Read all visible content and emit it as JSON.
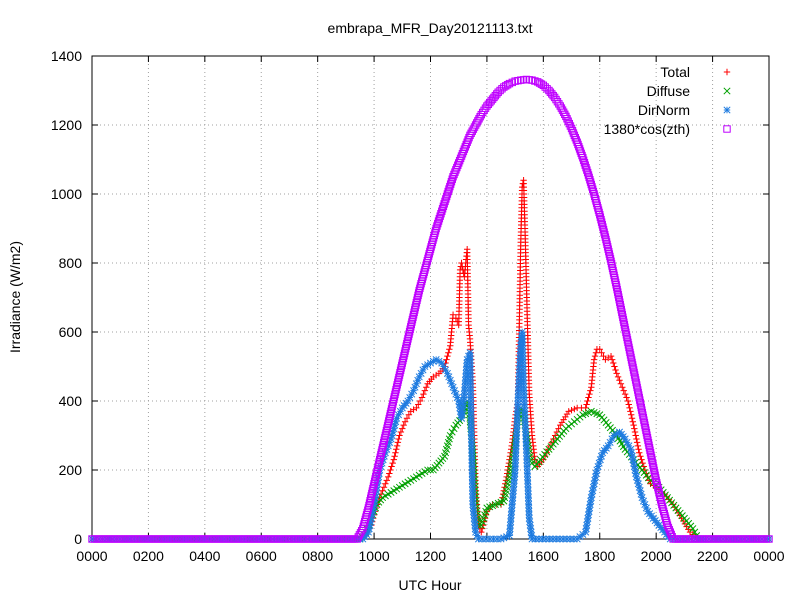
{
  "chart_data": {
    "type": "scatter",
    "title": "embrapa_MFR_Day20121113.txt",
    "xlabel": "UTC Hour",
    "ylabel": "Irradiance (W/m2)",
    "xlim": [
      0,
      24
    ],
    "ylim": [
      0,
      1400
    ],
    "x_ticks": [
      0,
      2,
      4,
      6,
      8,
      10,
      12,
      14,
      16,
      18,
      20,
      22,
      24
    ],
    "x_tick_labels": [
      "0000",
      "0200",
      "0400",
      "0600",
      "0800",
      "1000",
      "1200",
      "1400",
      "1600",
      "1800",
      "2000",
      "2200",
      "0000"
    ],
    "y_ticks": [
      0,
      200,
      400,
      600,
      800,
      1000,
      1200,
      1400
    ],
    "y_tick_labels": [
      "0",
      "200",
      "400",
      "600",
      "800",
      "1000",
      "1200",
      "1400"
    ],
    "grid": true,
    "legend_position": "top-right",
    "series": [
      {
        "name": "Total",
        "color": "#ff0000",
        "marker": "plus",
        "points": [
          [
            0,
            0
          ],
          [
            9.5,
            0
          ],
          [
            9.7,
            10
          ],
          [
            9.9,
            40
          ],
          [
            10.1,
            100
          ],
          [
            10.3,
            140
          ],
          [
            10.5,
            180
          ],
          [
            10.7,
            230
          ],
          [
            10.9,
            300
          ],
          [
            11.1,
            340
          ],
          [
            11.3,
            370
          ],
          [
            11.5,
            380
          ],
          [
            11.7,
            410
          ],
          [
            11.9,
            450
          ],
          [
            12.1,
            470
          ],
          [
            12.3,
            480
          ],
          [
            12.5,
            500
          ],
          [
            12.7,
            560
          ],
          [
            12.8,
            650
          ],
          [
            12.9,
            640
          ],
          [
            13.0,
            620
          ],
          [
            13.05,
            780
          ],
          [
            13.1,
            800
          ],
          [
            13.15,
            780
          ],
          [
            13.2,
            760
          ],
          [
            13.25,
            800
          ],
          [
            13.3,
            840
          ],
          [
            13.35,
            620
          ],
          [
            13.4,
            580
          ],
          [
            13.5,
            450
          ],
          [
            13.55,
            300
          ],
          [
            13.6,
            150
          ],
          [
            13.7,
            40
          ],
          [
            13.8,
            20
          ],
          [
            14.0,
            80
          ],
          [
            14.2,
            100
          ],
          [
            14.5,
            100
          ],
          [
            14.7,
            180
          ],
          [
            14.9,
            280
          ],
          [
            15.0,
            350
          ],
          [
            15.1,
            400
          ],
          [
            15.2,
            860
          ],
          [
            15.25,
            1020
          ],
          [
            15.3,
            1040
          ],
          [
            15.35,
            900
          ],
          [
            15.4,
            740
          ],
          [
            15.45,
            580
          ],
          [
            15.5,
            420
          ],
          [
            15.6,
            300
          ],
          [
            15.7,
            230
          ],
          [
            15.8,
            210
          ],
          [
            16.0,
            230
          ],
          [
            16.3,
            280
          ],
          [
            16.6,
            330
          ],
          [
            16.9,
            370
          ],
          [
            17.2,
            380
          ],
          [
            17.5,
            380
          ],
          [
            17.7,
            440
          ],
          [
            17.8,
            520
          ],
          [
            17.9,
            550
          ],
          [
            18.0,
            550
          ],
          [
            18.2,
            520
          ],
          [
            18.4,
            530
          ],
          [
            18.6,
            480
          ],
          [
            18.8,
            440
          ],
          [
            19.0,
            400
          ],
          [
            19.2,
            330
          ],
          [
            19.4,
            250
          ],
          [
            19.6,
            200
          ],
          [
            19.8,
            160
          ],
          [
            20.0,
            150
          ],
          [
            20.3,
            130
          ],
          [
            20.6,
            100
          ],
          [
            20.9,
            60
          ],
          [
            21.2,
            20
          ],
          [
            21.5,
            0
          ],
          [
            24,
            0
          ]
        ]
      },
      {
        "name": "Diffuse",
        "color": "#00a000",
        "marker": "cross",
        "points": [
          [
            0,
            0
          ],
          [
            9.5,
            0
          ],
          [
            9.7,
            20
          ],
          [
            9.9,
            60
          ],
          [
            10.1,
            100
          ],
          [
            10.3,
            120
          ],
          [
            10.5,
            130
          ],
          [
            10.7,
            140
          ],
          [
            10.9,
            150
          ],
          [
            11.1,
            160
          ],
          [
            11.3,
            170
          ],
          [
            11.5,
            180
          ],
          [
            11.7,
            190
          ],
          [
            11.9,
            200
          ],
          [
            12.1,
            200
          ],
          [
            12.3,
            220
          ],
          [
            12.5,
            240
          ],
          [
            12.7,
            300
          ],
          [
            12.9,
            330
          ],
          [
            13.1,
            350
          ],
          [
            13.2,
            380
          ],
          [
            13.3,
            400
          ],
          [
            13.4,
            350
          ],
          [
            13.5,
            250
          ],
          [
            13.6,
            100
          ],
          [
            13.7,
            40
          ],
          [
            13.8,
            40
          ],
          [
            14.0,
            90
          ],
          [
            14.3,
            100
          ],
          [
            14.6,
            110
          ],
          [
            14.8,
            180
          ],
          [
            15.0,
            280
          ],
          [
            15.1,
            350
          ],
          [
            15.2,
            380
          ],
          [
            15.3,
            360
          ],
          [
            15.4,
            300
          ],
          [
            15.5,
            250
          ],
          [
            15.6,
            220
          ],
          [
            15.7,
            210
          ],
          [
            15.9,
            230
          ],
          [
            16.2,
            260
          ],
          [
            16.5,
            290
          ],
          [
            16.8,
            320
          ],
          [
            17.1,
            340
          ],
          [
            17.4,
            360
          ],
          [
            17.7,
            370
          ],
          [
            18.0,
            360
          ],
          [
            18.3,
            330
          ],
          [
            18.6,
            300
          ],
          [
            18.9,
            260
          ],
          [
            19.2,
            230
          ],
          [
            19.5,
            200
          ],
          [
            19.8,
            170
          ],
          [
            20.1,
            150
          ],
          [
            20.4,
            120
          ],
          [
            20.7,
            90
          ],
          [
            21.0,
            60
          ],
          [
            21.3,
            30
          ],
          [
            21.5,
            0
          ],
          [
            24,
            0
          ]
        ]
      },
      {
        "name": "DirNorm",
        "color": "#1e7be0",
        "marker": "star",
        "points": [
          [
            0,
            0
          ],
          [
            9.6,
            0
          ],
          [
            9.8,
            20
          ],
          [
            10.0,
            100
          ],
          [
            10.2,
            200
          ],
          [
            10.4,
            250
          ],
          [
            10.6,
            290
          ],
          [
            10.8,
            350
          ],
          [
            11.0,
            380
          ],
          [
            11.2,
            400
          ],
          [
            11.4,
            430
          ],
          [
            11.6,
            470
          ],
          [
            11.8,
            500
          ],
          [
            12.0,
            510
          ],
          [
            12.2,
            520
          ],
          [
            12.4,
            510
          ],
          [
            12.6,
            480
          ],
          [
            12.8,
            440
          ],
          [
            13.0,
            400
          ],
          [
            13.1,
            350
          ],
          [
            13.2,
            420
          ],
          [
            13.3,
            520
          ],
          [
            13.4,
            540
          ],
          [
            13.45,
            300
          ],
          [
            13.5,
            100
          ],
          [
            13.6,
            20
          ],
          [
            13.7,
            0
          ],
          [
            14.5,
            0
          ],
          [
            14.8,
            10
          ],
          [
            15.0,
            200
          ],
          [
            15.1,
            400
          ],
          [
            15.2,
            560
          ],
          [
            15.25,
            600
          ],
          [
            15.3,
            440
          ],
          [
            15.4,
            260
          ],
          [
            15.5,
            60
          ],
          [
            15.6,
            0
          ],
          [
            17.2,
            0
          ],
          [
            17.5,
            20
          ],
          [
            17.7,
            120
          ],
          [
            17.9,
            200
          ],
          [
            18.1,
            250
          ],
          [
            18.3,
            270
          ],
          [
            18.5,
            300
          ],
          [
            18.7,
            310
          ],
          [
            18.9,
            290
          ],
          [
            19.1,
            260
          ],
          [
            19.3,
            180
          ],
          [
            19.5,
            120
          ],
          [
            19.7,
            80
          ],
          [
            19.9,
            60
          ],
          [
            20.1,
            40
          ],
          [
            20.3,
            20
          ],
          [
            20.5,
            0
          ],
          [
            24,
            0
          ]
        ]
      },
      {
        "name": "1380*cos(zth)",
        "color": "#bf00ff",
        "marker": "square",
        "points": [
          [
            0,
            0
          ],
          [
            9.4,
            0
          ],
          [
            9.6,
            30
          ],
          [
            9.8,
            90
          ],
          [
            10.0,
            160
          ],
          [
            10.2,
            230
          ],
          [
            10.4,
            300
          ],
          [
            10.6,
            370
          ],
          [
            10.8,
            440
          ],
          [
            11.0,
            510
          ],
          [
            11.2,
            580
          ],
          [
            11.4,
            650
          ],
          [
            11.6,
            720
          ],
          [
            11.8,
            780
          ],
          [
            12.0,
            840
          ],
          [
            12.2,
            900
          ],
          [
            12.4,
            950
          ],
          [
            12.6,
            1000
          ],
          [
            12.8,
            1050
          ],
          [
            13.0,
            1090
          ],
          [
            13.2,
            1130
          ],
          [
            13.4,
            1170
          ],
          [
            13.6,
            1200
          ],
          [
            13.8,
            1230
          ],
          [
            14.0,
            1255
          ],
          [
            14.2,
            1275
          ],
          [
            14.4,
            1295
          ],
          [
            14.6,
            1310
          ],
          [
            14.8,
            1320
          ],
          [
            15.0,
            1327
          ],
          [
            15.2,
            1330
          ],
          [
            15.4,
            1332
          ],
          [
            15.6,
            1330
          ],
          [
            15.8,
            1325
          ],
          [
            16.0,
            1315
          ],
          [
            16.2,
            1300
          ],
          [
            16.4,
            1280
          ],
          [
            16.6,
            1255
          ],
          [
            16.8,
            1225
          ],
          [
            17.0,
            1190
          ],
          [
            17.2,
            1150
          ],
          [
            17.4,
            1105
          ],
          [
            17.6,
            1055
          ],
          [
            17.8,
            1000
          ],
          [
            18.0,
            940
          ],
          [
            18.2,
            875
          ],
          [
            18.4,
            805
          ],
          [
            18.6,
            730
          ],
          [
            18.8,
            650
          ],
          [
            19.0,
            570
          ],
          [
            19.2,
            490
          ],
          [
            19.4,
            410
          ],
          [
            19.6,
            330
          ],
          [
            19.8,
            250
          ],
          [
            20.0,
            170
          ],
          [
            20.2,
            100
          ],
          [
            20.4,
            40
          ],
          [
            20.6,
            0
          ],
          [
            24,
            0
          ]
        ]
      }
    ]
  }
}
